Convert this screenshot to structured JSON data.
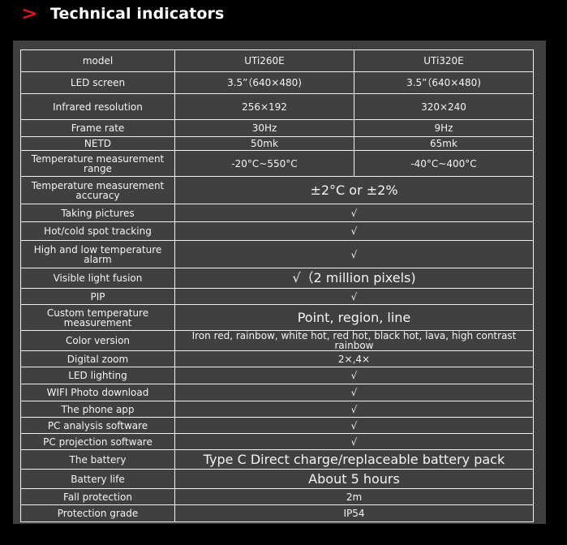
{
  "header": {
    "chevron_icon": "chevron-right-icon",
    "title": "Technical indicators",
    "accent_color": "#e0141e"
  },
  "table": {
    "rows": [
      {
        "label": "model",
        "v1": "UTi260E",
        "v2": "UTi320E"
      },
      {
        "label": "LED screen",
        "v1": "3.5”（640×480)",
        "v2": "3.5”（640×480)"
      },
      {
        "label": "Infrared resolution",
        "v1": "256×192",
        "v2": "320×240"
      },
      {
        "label": "Frame rate",
        "v1": "30Hz",
        "v2": "9Hz"
      },
      {
        "label": "NETD",
        "v1": "50mk",
        "v2": "65mk"
      },
      {
        "label": "Temperature measurement range",
        "v1": "-20°C~550°C",
        "v2": "-40°C~400°C"
      },
      {
        "label": "Temperature measurement accuracy",
        "value": "±2°C or ±2%"
      },
      {
        "label": "Taking pictures",
        "value": "√"
      },
      {
        "label": "Hot/cold spot tracking",
        "value": "√"
      },
      {
        "label": "High and low temperature alarm",
        "value": "√"
      },
      {
        "label": "Visible light fusion",
        "value": "√（2 million pixels)"
      },
      {
        "label": "PIP",
        "value": "√"
      },
      {
        "label": "Custom temperature measurement",
        "value": "Point, region, line"
      },
      {
        "label": "Color version",
        "value": "Iron red, rainbow, white hot, red hot, black hot, lava, high contrast rainbow"
      },
      {
        "label": "Digital zoom",
        "value": "2×,4×"
      },
      {
        "label": "LED lighting",
        "value": "√"
      },
      {
        "label": "WIFI Photo download",
        "value": "√"
      },
      {
        "label": "The phone app",
        "value": "√"
      },
      {
        "label": "PC analysis software",
        "value": "√"
      },
      {
        "label": "PC projection software",
        "value": "√"
      },
      {
        "label": "The battery",
        "value": "Type C Direct charge/replaceable battery pack"
      },
      {
        "label": "Battery life",
        "value": "About 5 hours"
      },
      {
        "label": "Fall protection",
        "value": "2m"
      },
      {
        "label": "Protection grade",
        "value": "IP54"
      }
    ]
  }
}
